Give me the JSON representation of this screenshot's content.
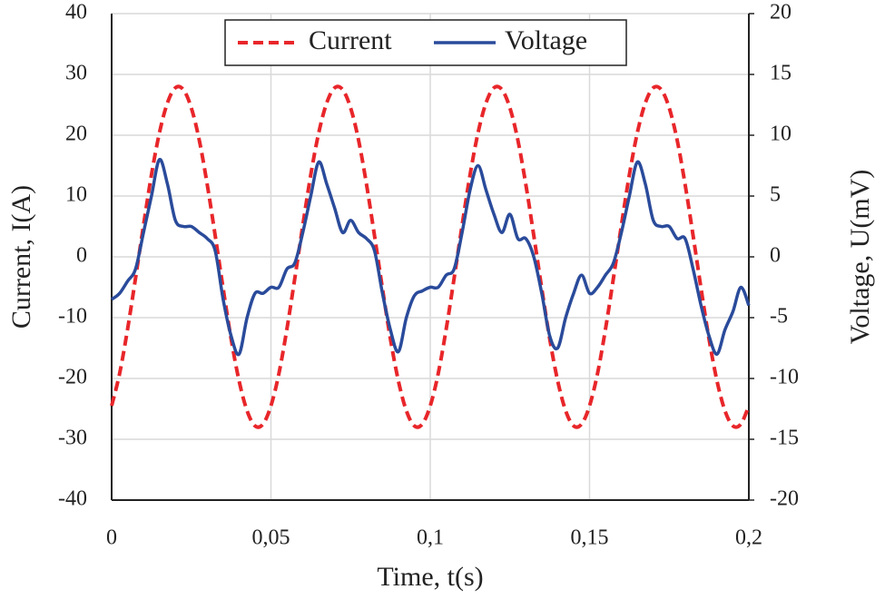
{
  "chart_data": {
    "type": "line",
    "xlabel": "Time, t(s)",
    "ylabel": "Current, I(A)",
    "y2label": "Voltage, U(mV)",
    "xlim": [
      0,
      0.2
    ],
    "xticks": [
      0,
      {
        "value": 0.05,
        "label": "0,05"
      },
      {
        "value": 0.1,
        "label": "0,1"
      },
      {
        "value": 0.15,
        "label": "0,15"
      },
      {
        "value": 0.2,
        "label": "0,2"
      }
    ],
    "ylim": [
      -40,
      40
    ],
    "yticks": [
      -40,
      -30,
      -20,
      -10,
      0,
      10,
      20,
      30,
      40
    ],
    "y2lim": [
      -20,
      20
    ],
    "y2ticks": [
      -20,
      -15,
      -10,
      -5,
      0,
      5,
      10,
      15,
      20
    ],
    "grid": true,
    "legend": "top",
    "x": [
      0,
      0.0025,
      0.005,
      0.0075,
      0.01,
      0.0125,
      0.015,
      0.0175,
      0.02,
      0.0225,
      0.025,
      0.0275,
      0.03,
      0.0325,
      0.035,
      0.0375,
      0.04,
      0.0425,
      0.045,
      0.0475,
      0.05,
      0.0525,
      0.055,
      0.0575,
      0.06,
      0.0625,
      0.065,
      0.0675,
      0.07,
      0.0725,
      0.075,
      0.0775,
      0.08,
      0.0825,
      0.085,
      0.0875,
      0.09,
      0.0925,
      0.095,
      0.0975,
      0.1,
      0.1025,
      0.105,
      0.1075,
      0.11,
      0.1125,
      0.115,
      0.1175,
      0.12,
      0.1225,
      0.125,
      0.1275,
      0.13,
      0.1325,
      0.135,
      0.1375,
      0.14,
      0.1425,
      0.145,
      0.1475,
      0.15,
      0.1525,
      0.155,
      0.1575,
      0.16,
      0.1625,
      0.165,
      0.1675,
      0.17,
      0.1725,
      0.175,
      0.1775,
      0.18,
      0.1825,
      0.185,
      0.1875,
      0.19,
      0.1925,
      0.195,
      0.1975,
      0.2
    ],
    "series": [
      {
        "name": "Current",
        "color": "#e8262a",
        "dash": true,
        "values": [
          -24.5,
          -19.2,
          -11.9,
          -3.5,
          5.2,
          13.5,
          20.4,
          25.3,
          27.8,
          27.5,
          24.5,
          19.2,
          11.9,
          3.5,
          -5.2,
          -13.5,
          -20.4,
          -25.3,
          -27.8,
          -27.5,
          -24.5,
          -19.2,
          -11.9,
          -3.5,
          5.2,
          13.5,
          20.4,
          25.3,
          27.8,
          27.5,
          24.5,
          19.2,
          11.9,
          3.5,
          -5.2,
          -13.5,
          -20.4,
          -25.3,
          -27.8,
          -27.5,
          -24.5,
          -19.2,
          -11.9,
          -3.5,
          5.2,
          13.5,
          20.4,
          25.3,
          27.8,
          27.5,
          24.5,
          19.2,
          11.9,
          3.5,
          -5.2,
          -13.5,
          -20.4,
          -25.3,
          -27.8,
          -27.5,
          -24.5,
          -19.2,
          -11.9,
          -3.5,
          5.2,
          13.5,
          20.4,
          25.3,
          27.8,
          27.5,
          24.5,
          19.2,
          11.9,
          3.5,
          -5.2,
          -13.5,
          -20.4,
          -25.3,
          -27.8,
          -27.5,
          -24.5
        ]
      },
      {
        "name": "Voltage",
        "color": "#2a4b9b",
        "axis": "y2",
        "values": [
          -3.5,
          -3,
          -2,
          -1,
          2,
          5,
          8,
          6,
          3,
          2.5,
          2.5,
          2,
          1.5,
          0.5,
          -3.5,
          -6.5,
          -8,
          -5,
          -3,
          -3,
          -2.5,
          -2.5,
          -1,
          -0.5,
          2,
          5,
          7.8,
          6,
          4,
          2,
          3,
          2,
          1.5,
          0.5,
          -3,
          -6,
          -7.8,
          -5,
          -3.2,
          -2.8,
          -2.5,
          -2.5,
          -1.5,
          -1,
          2,
          5.5,
          7.5,
          5.5,
          3.5,
          2,
          3.5,
          1.5,
          1.5,
          0,
          -3,
          -6.5,
          -7.5,
          -5,
          -3,
          -1.5,
          -3,
          -2.5,
          -1.5,
          -0.5,
          2,
          5,
          7.8,
          6,
          3,
          2.5,
          2.5,
          1.5,
          1.5,
          -1,
          -4,
          -6.5,
          -8,
          -6,
          -4.5,
          -2.5,
          -4
        ]
      }
    ]
  }
}
